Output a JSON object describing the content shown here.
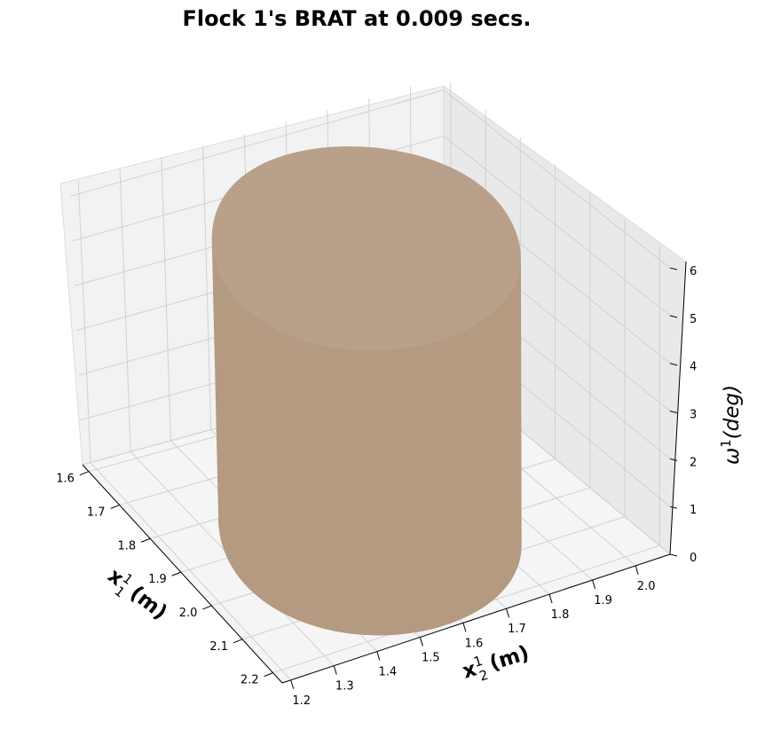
{
  "chart_data": {
    "type": "surface3d",
    "title": "Flock 1's BRAT at 0.009 secs.",
    "xlabel": "x",
    "xlabel_sup": "1",
    "xlabel_sub": "1",
    "xlabel_unit": "(m)",
    "ylabel": "x",
    "ylabel_sup": "1",
    "ylabel_sub": "2",
    "ylabel_unit": "(m)",
    "zlabel": "ω",
    "zlabel_sup": "1",
    "zlabel_unit": "(deg)",
    "x_ticks": [
      "1.6",
      "1.7",
      "1.8",
      "1.9",
      "2.0",
      "2.1",
      "2.2"
    ],
    "y_ticks": [
      "1.2",
      "1.3",
      "1.4",
      "1.5",
      "1.6",
      "1.7",
      "1.8",
      "1.9",
      "2.0"
    ],
    "z_ticks": [
      "0",
      "1",
      "2",
      "3",
      "4",
      "5",
      "6"
    ],
    "xlim": [
      1.58,
      2.23
    ],
    "ylim": [
      1.18,
      2.08
    ],
    "zlim": [
      0,
      6.28
    ],
    "surface_color": "#b39a80",
    "grid": true
  }
}
